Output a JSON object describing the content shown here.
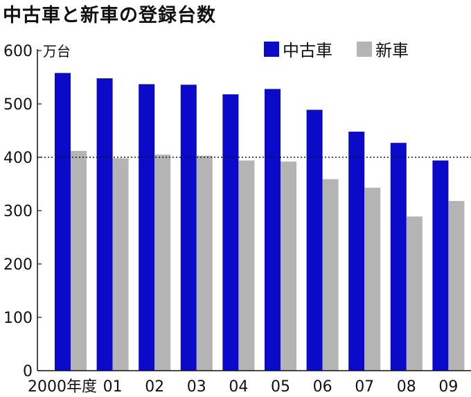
{
  "title": "中古車と新車の登録台数",
  "chart_data": {
    "type": "bar",
    "unit_label": "万台",
    "categories": [
      "2000年度",
      "01",
      "02",
      "03",
      "04",
      "05",
      "06",
      "07",
      "08",
      "09"
    ],
    "series": [
      {
        "name": "中古車",
        "color": "#0a0ac8",
        "values": [
          558,
          548,
          537,
          536,
          518,
          528,
          489,
          448,
          427,
          394
        ]
      },
      {
        "name": "新車",
        "color": "#b4b4b4",
        "values": [
          412,
          398,
          405,
          403,
          394,
          392,
          359,
          343,
          289,
          318
        ]
      }
    ],
    "ylim": [
      0,
      600
    ],
    "yticks": [
      0,
      100,
      200,
      300,
      400,
      500,
      600
    ],
    "reference_line": 400,
    "legend_position": "top-right",
    "grid": false
  }
}
